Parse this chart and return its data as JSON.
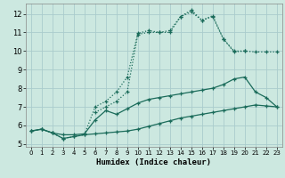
{
  "xlabel": "Humidex (Indice chaleur)",
  "bg_color": "#cce8e0",
  "grid_color": "#aacccc",
  "line_color": "#1a6b5a",
  "xlim": [
    -0.5,
    23.5
  ],
  "ylim": [
    4.85,
    12.55
  ],
  "yticks": [
    5,
    6,
    7,
    8,
    9,
    10,
    11,
    12
  ],
  "xticks": [
    0,
    1,
    2,
    3,
    4,
    5,
    6,
    7,
    8,
    9,
    10,
    11,
    12,
    13,
    14,
    15,
    16,
    17,
    18,
    19,
    20,
    21,
    22,
    23
  ],
  "s1_x": [
    0,
    1,
    2,
    3,
    4,
    5,
    6,
    7,
    8,
    9,
    10,
    11,
    12,
    13,
    14,
    15,
    16,
    17,
    18,
    19,
    20,
    21,
    22,
    23
  ],
  "s1_y": [
    5.7,
    5.8,
    5.6,
    5.3,
    5.4,
    5.5,
    5.55,
    5.6,
    5.65,
    5.7,
    5.8,
    5.95,
    6.1,
    6.25,
    6.4,
    6.5,
    6.6,
    6.7,
    6.8,
    6.9,
    7.0,
    7.1,
    7.05,
    7.0
  ],
  "s2_x": [
    0,
    1,
    2,
    3,
    4,
    5,
    6,
    7,
    8,
    9,
    10,
    11,
    12,
    13,
    14,
    15,
    16,
    17,
    18,
    19,
    20,
    21,
    22,
    23
  ],
  "s2_y": [
    5.7,
    5.8,
    5.6,
    5.5,
    5.5,
    5.55,
    6.3,
    6.8,
    6.6,
    6.9,
    7.2,
    7.4,
    7.5,
    7.6,
    7.7,
    7.8,
    7.9,
    8.0,
    8.2,
    8.5,
    8.6,
    7.8,
    7.5,
    7.0
  ],
  "s3_x": [
    0,
    1,
    2,
    3,
    4,
    5,
    6,
    7,
    8,
    9,
    10,
    11,
    12,
    13,
    14,
    15,
    16,
    17,
    18,
    19,
    20
  ],
  "s3_y": [
    5.7,
    5.8,
    5.6,
    5.3,
    5.4,
    5.5,
    7.0,
    7.3,
    7.8,
    8.6,
    10.95,
    11.1,
    11.0,
    11.1,
    11.85,
    12.2,
    11.65,
    11.9,
    10.65,
    10.0,
    10.0
  ],
  "s4_x": [
    6,
    7,
    8,
    9,
    10,
    11,
    12,
    13,
    14,
    15,
    16,
    17,
    18,
    19,
    20,
    21,
    22,
    23
  ],
  "s4_y": [
    6.7,
    7.0,
    7.3,
    7.8,
    10.9,
    11.0,
    11.0,
    11.0,
    11.85,
    12.1,
    11.65,
    11.85,
    10.65,
    9.95,
    10.0,
    9.95,
    9.95,
    9.95
  ]
}
